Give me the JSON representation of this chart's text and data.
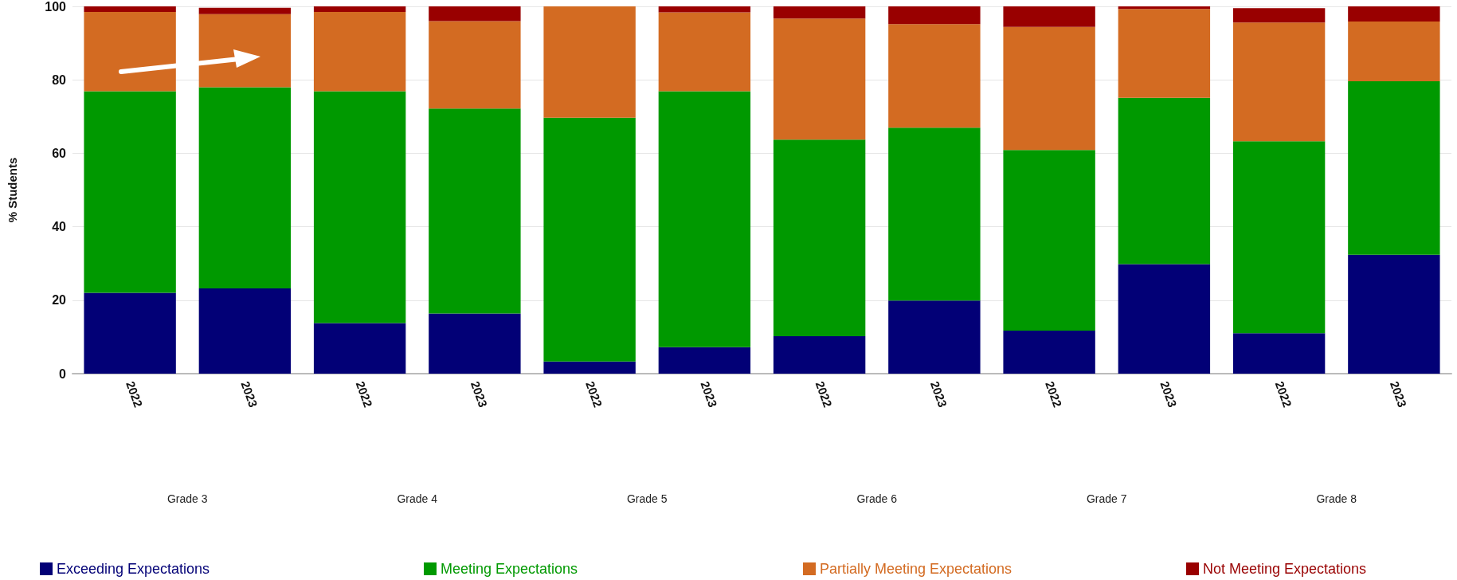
{
  "chart_data": {
    "type": "bar",
    "stacked": true,
    "ylabel": "% Students",
    "categories": [
      "2022",
      "2023",
      "2022",
      "2023",
      "2022",
      "2023",
      "2022",
      "2023",
      "2022",
      "2023",
      "2022",
      "2023"
    ],
    "annotations": [
      "Grade 3",
      "Grade 4",
      "Grade 5",
      "Grade 6",
      "Grade 7",
      "Grade 8"
    ],
    "series": [
      {
        "name": "Exceeding Expectations",
        "color": "#020076",
        "values": [
          22.0,
          23.2,
          13.8,
          16.4,
          3.3,
          7.2,
          10.2,
          19.9,
          11.7,
          29.8,
          11.0,
          32.4
        ]
      },
      {
        "name": "Meeting Expectations",
        "color": "#009900",
        "values": [
          54.9,
          54.8,
          63.1,
          55.8,
          66.4,
          69.7,
          53.5,
          47.1,
          49.2,
          45.3,
          52.3,
          47.2
        ]
      },
      {
        "name": "Partially Meeting Expectations",
        "color": "#d36b22",
        "values": [
          21.6,
          19.9,
          21.6,
          23.8,
          30.3,
          21.5,
          33.0,
          28.2,
          33.5,
          24.2,
          32.3,
          16.3
        ]
      },
      {
        "name": "Not Meeting Expectations",
        "color": "#990000",
        "values": [
          1.5,
          1.7,
          1.5,
          4.0,
          0,
          1.6,
          3.3,
          4.8,
          5.6,
          0.7,
          3.9,
          4.1
        ]
      }
    ],
    "ylim": [
      0,
      100
    ],
    "yticks": [
      0,
      20,
      40,
      60,
      80,
      100
    ],
    "grid": "y",
    "legend": "bottom"
  }
}
